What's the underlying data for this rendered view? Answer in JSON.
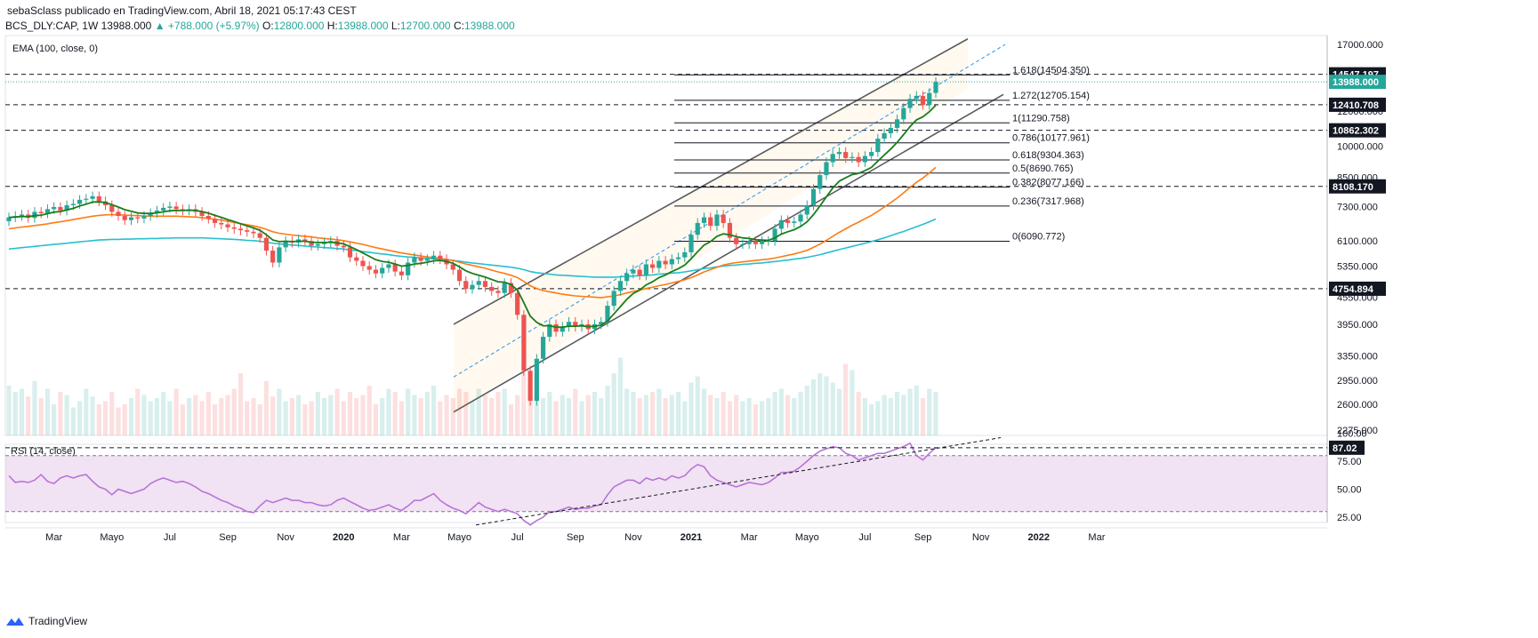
{
  "header": {
    "publisher_line": "sebaSclass publicado en TradingView.com, Abril 18, 2021 05:17:43 CEST",
    "symbol": "BCS_DLY:CAP, 1W",
    "last": "13988.000",
    "change": "▲ +788.000 (+5.97%)",
    "o_label": "O:",
    "o_value": "12800.000",
    "h_label": "H:",
    "h_value": "13988.000",
    "l_label": "L:",
    "l_value": "12700.000",
    "c_label": "C:",
    "c_value": "13988.000"
  },
  "footer": {
    "brand": "TradingView"
  },
  "colors": {
    "bull": "#26a69a",
    "bear": "#ef5350",
    "ema_fast": "#1b7d1b",
    "ema_mid": "#ff7b12",
    "ema_slow": "#26bfd0",
    "rsi": "#b56fd6",
    "channel": "#5b5b5b"
  },
  "chart_data": {
    "type": "candlestick",
    "scale": "log",
    "price_panel": {
      "indicator_label": "EMA (100, close, 0)",
      "y_ticks": [
        17000,
        12000,
        10000,
        8500,
        7300,
        6100,
        5350,
        4550,
        3950,
        3350,
        2950,
        2600,
        2275
      ],
      "y_ticks_labels": [
        "17000.000",
        "12000.000",
        "10000.000",
        "8500.000",
        "7300.000",
        "6100.000",
        "5350.000",
        "4550.000",
        "3950.000",
        "3350.000",
        "2950.000",
        "2600.000",
        "2275.000"
      ],
      "horizontal_levels": [
        {
          "value": 14547.197,
          "label": "14547.197"
        },
        {
          "value": 12410.708,
          "label": "12410.708"
        },
        {
          "value": 10862.302,
          "label": "10862.302"
        },
        {
          "value": 8108.17,
          "label": "8108.170"
        },
        {
          "value": 4754.894,
          "label": "4754.894"
        }
      ],
      "last_price": {
        "value": 13988.0,
        "label": "13988.000"
      },
      "fibonacci": [
        {
          "value": 14504.35,
          "label": "1.618(14504.350)"
        },
        {
          "value": 12705.154,
          "label": "1.272(12705.154)"
        },
        {
          "value": 11290.758,
          "label": "1(11290.758)"
        },
        {
          "value": 10177.961,
          "label": "0.786(10177.961)"
        },
        {
          "value": 9304.363,
          "label": "0.618(9304.363)"
        },
        {
          "value": 8690.765,
          "label": "0.5(8690.765)"
        },
        {
          "value": 8077.166,
          "label": "0.382(8077.166)"
        },
        {
          "value": 7317.968,
          "label": "0.236(7317.968)"
        },
        {
          "value": 6090.772,
          "label": "0(6090.772)"
        }
      ],
      "candles_close": [
        6900,
        6950,
        7000,
        6880,
        7100,
        7050,
        7200,
        7280,
        7150,
        7350,
        7400,
        7560,
        7600,
        7700,
        7500,
        7350,
        7100,
        6950,
        6800,
        6900,
        6860,
        6950,
        7050,
        7150,
        7250,
        7300,
        7200,
        7150,
        7200,
        7100,
        6950,
        6850,
        6700,
        6650,
        6550,
        6500,
        6450,
        6400,
        6350,
        6200,
        5800,
        5450,
        5900,
        6100,
        6050,
        6150,
        6100,
        5950,
        6000,
        6050,
        6100,
        5950,
        5900,
        5600,
        5500,
        5350,
        5250,
        5150,
        5300,
        5400,
        5200,
        5100,
        5450,
        5600,
        5500,
        5550,
        5650,
        5550,
        5400,
        5250,
        4950,
        4750,
        4850,
        4950,
        4800,
        4700,
        4650,
        4900,
        4650,
        4150,
        3100,
        2650,
        3300,
        3700,
        3950,
        3800,
        3900,
        4000,
        3900,
        3950,
        3850,
        3950,
        4000,
        4350,
        4700,
        4950,
        5150,
        5250,
        5100,
        5400,
        5300,
        5500,
        5400,
        5550,
        5600,
        5750,
        6300,
        6700,
        6900,
        6600,
        7000,
        6700,
        6200,
        6000,
        6000,
        6100,
        6000,
        6100,
        6100,
        6500,
        6800,
        6700,
        6750,
        7000,
        7350,
        8000,
        8600,
        9200,
        9600,
        9700,
        9400,
        9450,
        9200,
        9500,
        9700,
        10400,
        10700,
        11000,
        11500,
        12200,
        12800,
        13000,
        12400,
        13200,
        13988
      ],
      "ema_fast": [
        6900,
        6910,
        6930,
        6920,
        6960,
        6980,
        7030,
        7090,
        7110,
        7170,
        7230,
        7320,
        7390,
        7470,
        7480,
        7450,
        7370,
        7280,
        7180,
        7120,
        7060,
        7040,
        7040,
        7060,
        7100,
        7140,
        7150,
        7150,
        7160,
        7150,
        7110,
        7050,
        6970,
        6900,
        6820,
        6750,
        6670,
        6600,
        6530,
        6450,
        6300,
        6130,
        6080,
        6090,
        6080,
        6090,
        6090,
        6060,
        6050,
        6050,
        6060,
        6040,
        6010,
        5920,
        5830,
        5730,
        5630,
        5530,
        5480,
        5460,
        5410,
        5350,
        5370,
        5410,
        5430,
        5460,
        5500,
        5510,
        5480,
        5430,
        5330,
        5220,
        5150,
        5100,
        5050,
        4990,
        4930,
        4920,
        4860,
        4720,
        4420,
        4120,
        3990,
        3920,
        3920,
        3890,
        3890,
        3910,
        3910,
        3920,
        3900,
        3910,
        3930,
        4020,
        4170,
        4330,
        4500,
        4640,
        4720,
        4850,
        4930,
        5040,
        5110,
        5200,
        5280,
        5380,
        5560,
        5770,
        5970,
        6080,
        6250,
        6330,
        6300,
        6240,
        6200,
        6180,
        6140,
        6130,
        6120,
        6200,
        6320,
        6400,
        6470,
        6580,
        6740,
        7000,
        7320,
        7680,
        8040,
        8330,
        8480,
        8620,
        8680,
        8800,
        8950,
        9250,
        9550,
        9850,
        10200,
        10620,
        11080,
        11470,
        11650,
        11970,
        12380
      ],
      "ema_mid": [
        6500,
        6530,
        6560,
        6580,
        6610,
        6640,
        6670,
        6710,
        6740,
        6780,
        6820,
        6860,
        6900,
        6940,
        6970,
        6990,
        7000,
        6990,
        6980,
        6970,
        6960,
        6950,
        6940,
        6940,
        6940,
        6940,
        6940,
        6930,
        6920,
        6910,
        6890,
        6860,
        6830,
        6800,
        6760,
        6720,
        6680,
        6640,
        6600,
        6550,
        6480,
        6400,
        6350,
        6320,
        6290,
        6270,
        6250,
        6230,
        6200,
        6180,
        6160,
        6140,
        6110,
        6070,
        6030,
        5990,
        5940,
        5890,
        5850,
        5810,
        5770,
        5730,
        5700,
        5670,
        5640,
        5610,
        5590,
        5570,
        5540,
        5510,
        5460,
        5410,
        5370,
        5330,
        5290,
        5240,
        5190,
        5150,
        5100,
        5040,
        4940,
        4830,
        4760,
        4710,
        4680,
        4650,
        4620,
        4600,
        4580,
        4570,
        4560,
        4550,
        4540,
        4560,
        4580,
        4610,
        4650,
        4690,
        4720,
        4760,
        4790,
        4830,
        4860,
        4900,
        4940,
        4980,
        5040,
        5110,
        5190,
        5250,
        5320,
        5380,
        5420,
        5450,
        5470,
        5490,
        5510,
        5530,
        5550,
        5580,
        5620,
        5660,
        5700,
        5750,
        5810,
        5900,
        6000,
        6120,
        6250,
        6380,
        6500,
        6620,
        6730,
        6850,
        6970,
        7120,
        7280,
        7450,
        7630,
        7840,
        8060,
        8280,
        8470,
        8700,
        8950
      ],
      "ema_slow": [
        5850,
        5870,
        5890,
        5910,
        5930,
        5950,
        5970,
        5990,
        6010,
        6030,
        6050,
        6070,
        6090,
        6110,
        6130,
        6140,
        6150,
        6150,
        6160,
        6160,
        6170,
        6170,
        6180,
        6180,
        6190,
        6190,
        6200,
        6200,
        6200,
        6200,
        6200,
        6190,
        6180,
        6170,
        6160,
        6150,
        6140,
        6120,
        6110,
        6090,
        6060,
        6030,
        6010,
        5990,
        5970,
        5960,
        5940,
        5920,
        5910,
        5890,
        5880,
        5860,
        5850,
        5820,
        5800,
        5770,
        5750,
        5720,
        5700,
        5680,
        5650,
        5630,
        5610,
        5600,
        5580,
        5570,
        5560,
        5540,
        5530,
        5510,
        5490,
        5460,
        5440,
        5420,
        5400,
        5380,
        5360,
        5340,
        5320,
        5290,
        5250,
        5200,
        5170,
        5150,
        5130,
        5110,
        5100,
        5090,
        5080,
        5070,
        5060,
        5050,
        5050,
        5050,
        5050,
        5060,
        5070,
        5080,
        5090,
        5100,
        5110,
        5130,
        5140,
        5160,
        5170,
        5190,
        5220,
        5250,
        5280,
        5300,
        5330,
        5350,
        5370,
        5380,
        5400,
        5410,
        5430,
        5440,
        5460,
        5480,
        5500,
        5520,
        5550,
        5570,
        5600,
        5640,
        5680,
        5730,
        5780,
        5830,
        5880,
        5930,
        5980,
        6030,
        6080,
        6140,
        6200,
        6270,
        6340,
        6410,
        6490,
        6570,
        6650,
        6740,
        6840
      ],
      "volume": [
        32,
        28,
        30,
        25,
        35,
        24,
        30,
        20,
        28,
        26,
        18,
        22,
        30,
        25,
        20,
        22,
        28,
        18,
        20,
        24,
        30,
        26,
        22,
        24,
        28,
        22,
        30,
        20,
        24,
        26,
        22,
        28,
        20,
        24,
        26,
        30,
        40,
        22,
        24,
        20,
        35,
        25,
        30,
        22,
        24,
        26,
        20,
        22,
        28,
        24,
        26,
        30,
        22,
        28,
        24,
        26,
        32,
        20,
        24,
        30,
        28,
        22,
        30,
        26,
        24,
        28,
        32,
        22,
        26,
        24,
        30,
        28,
        22,
        30,
        26,
        24,
        28,
        30,
        20,
        26,
        40,
        34,
        26,
        24,
        28,
        22,
        26,
        24,
        30,
        22,
        26,
        28,
        24,
        32,
        40,
        50,
        30,
        28,
        24,
        26,
        28,
        30,
        24,
        26,
        28,
        22,
        34,
        38,
        30,
        26,
        24,
        28,
        22,
        26,
        22,
        24,
        20,
        22,
        24,
        28,
        30,
        26,
        24,
        28,
        32,
        36,
        40,
        38,
        34,
        30,
        46,
        42,
        28,
        24,
        20,
        22,
        26,
        24,
        28,
        26,
        30,
        32,
        24,
        30,
        28
      ],
      "channel": {
        "upper_left": 3950,
        "upper_right": 17500,
        "lower_left": 2500,
        "lower_right": 13500,
        "mid_left": 3000,
        "mid_right": 17000
      }
    },
    "rsi_panel": {
      "label": "RSI (14, close)",
      "current": 87.02,
      "current_label": "87.02",
      "y_ticks": [
        100,
        75,
        50,
        25
      ],
      "y_ticks_labels": [
        "100.00",
        "75.00",
        "50.00",
        "25.00"
      ],
      "band_upper": 80,
      "band_lower": 30,
      "values": [
        62,
        56,
        57,
        56,
        58,
        63,
        57,
        55,
        60,
        62,
        60,
        62,
        63,
        57,
        52,
        50,
        45,
        50,
        48,
        46,
        48,
        50,
        55,
        58,
        60,
        58,
        56,
        57,
        55,
        52,
        48,
        46,
        43,
        40,
        38,
        35,
        33,
        30,
        29,
        35,
        40,
        38,
        40,
        42,
        40,
        40,
        38,
        38,
        36,
        35,
        36,
        40,
        42,
        39,
        36,
        33,
        31,
        32,
        34,
        36,
        33,
        31,
        35,
        40,
        40,
        43,
        46,
        40,
        36,
        33,
        31,
        28,
        33,
        38,
        34,
        32,
        30,
        32,
        30,
        28,
        22,
        18,
        22,
        25,
        30,
        30,
        32,
        34,
        32,
        33,
        33,
        35,
        36,
        45,
        52,
        55,
        58,
        58,
        55,
        60,
        58,
        60,
        58,
        62,
        60,
        62,
        68,
        72,
        70,
        62,
        58,
        56,
        54,
        52,
        54,
        56,
        55,
        54,
        56,
        60,
        65,
        65,
        66,
        70,
        75,
        80,
        84,
        86,
        88,
        87,
        82,
        80,
        76,
        78,
        80,
        82,
        82,
        84,
        86,
        88,
        91,
        80,
        76,
        82,
        87
      ]
    },
    "x_ticks": [
      {
        "i": 7,
        "label": "Mar"
      },
      {
        "i": 16,
        "label": "Mayo"
      },
      {
        "i": 25,
        "label": "Jul"
      },
      {
        "i": 34,
        "label": "Sep"
      },
      {
        "i": 43,
        "label": "Nov"
      },
      {
        "i": 52,
        "label": "2020"
      },
      {
        "i": 61,
        "label": "Mar"
      },
      {
        "i": 70,
        "label": "Mayo"
      },
      {
        "i": 79,
        "label": "Jul"
      },
      {
        "i": 88,
        "label": "Sep"
      },
      {
        "i": 97,
        "label": "Nov"
      },
      {
        "i": 106,
        "label": "2021"
      },
      {
        "i": 115,
        "label": "Mar"
      },
      {
        "i": 124,
        "label": "Mayo"
      },
      {
        "i": 133,
        "label": "Jul"
      },
      {
        "i": 142,
        "label": "Sep"
      },
      {
        "i": 151,
        "label": "Nov"
      },
      {
        "i": 160,
        "label": "2022"
      },
      {
        "i": 169,
        "label": "Mar"
      }
    ],
    "legend": "top-left"
  }
}
